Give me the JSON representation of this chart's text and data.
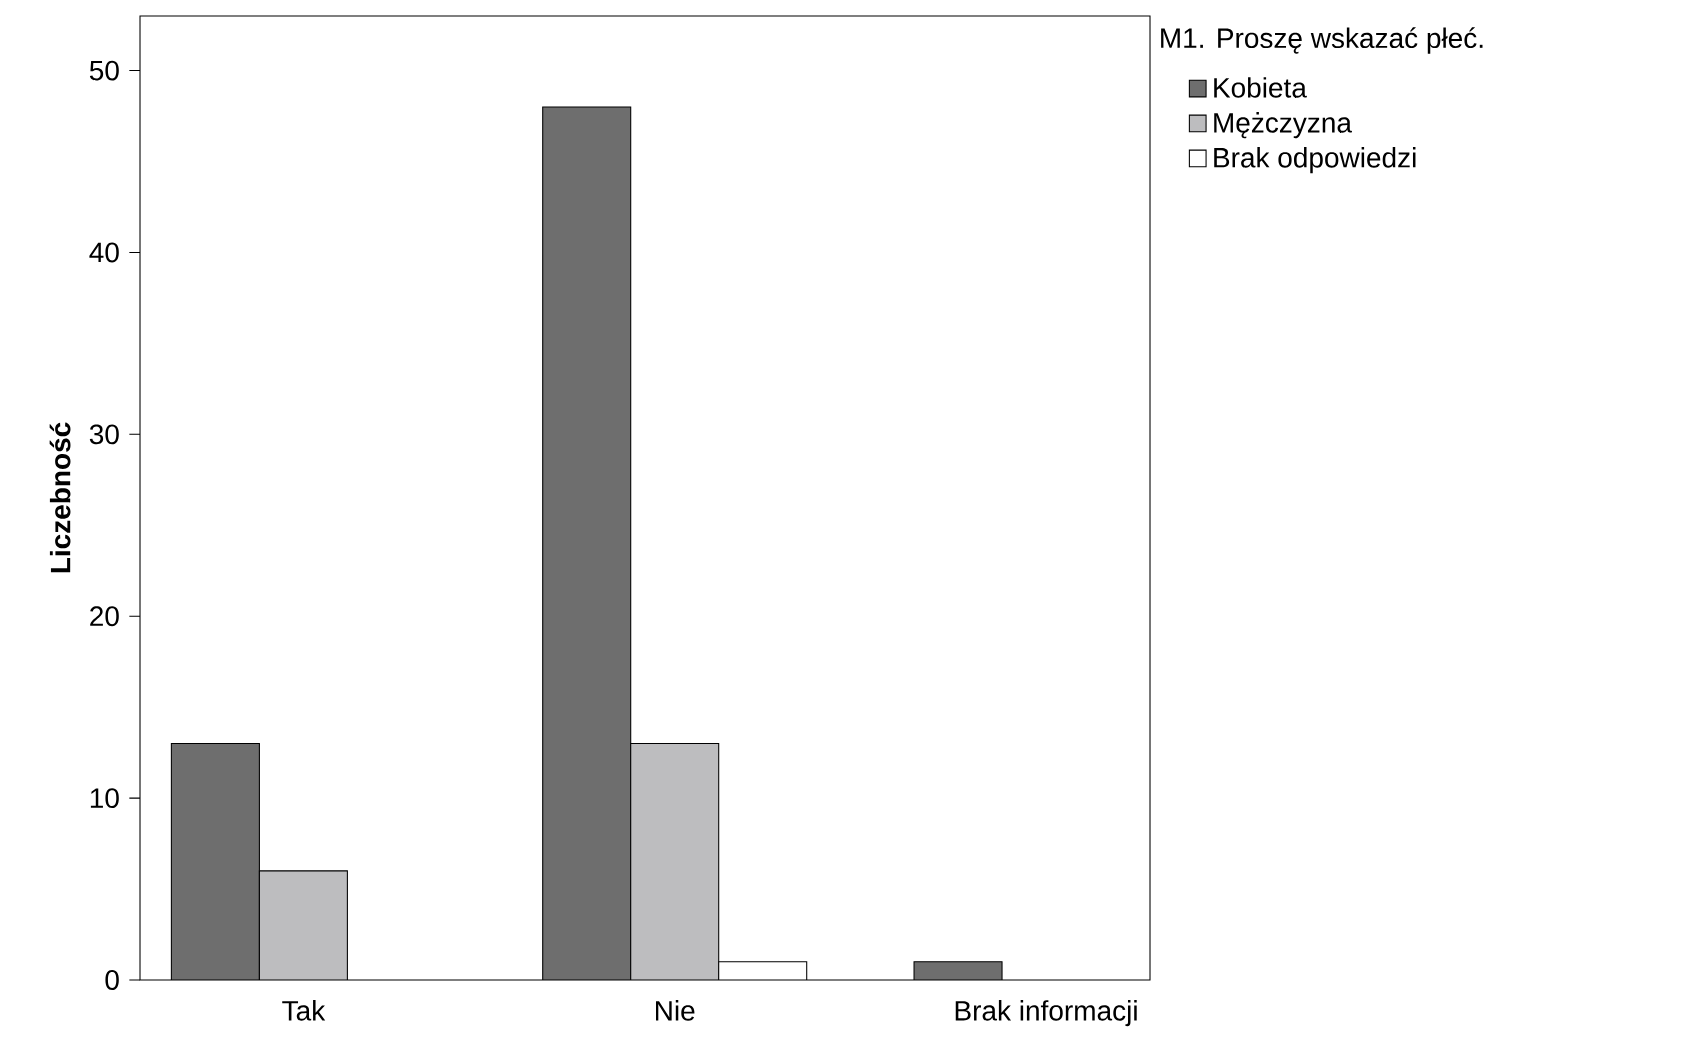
{
  "chart_data": {
    "type": "bar",
    "ylabel": "Liczebność",
    "legend_title": "M1. Proszę wskazać płeć.",
    "categories": [
      "Tak",
      "Nie",
      "Brak informacji"
    ],
    "series": [
      {
        "name": "Kobieta",
        "color": "#6e6e6e",
        "values": [
          13,
          48,
          1
        ]
      },
      {
        "name": "Mężczyzna",
        "color": "#bdbdbf",
        "values": [
          6,
          13,
          null
        ]
      },
      {
        "name": "Brak odpowiedzi",
        "color": "#ffffff",
        "values": [
          null,
          1,
          null
        ]
      }
    ],
    "ylim": [
      0,
      53
    ],
    "yticks": [
      0,
      10,
      20,
      30,
      40,
      50
    ],
    "grid": false,
    "legend": "right"
  }
}
